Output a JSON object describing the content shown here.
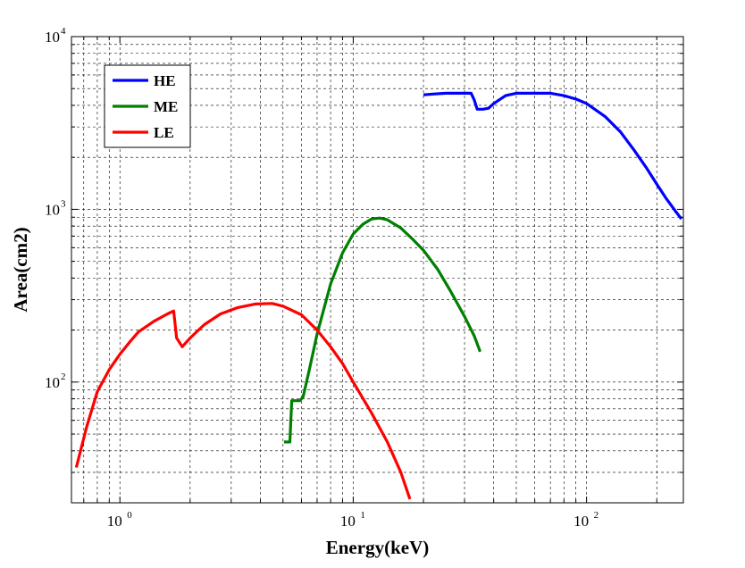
{
  "chart_data": {
    "type": "line",
    "xlabel": "Energy(keV)",
    "ylabel": "Area(cm2)",
    "x_scale": "log",
    "y_scale": "log",
    "xlim": [
      0.62,
      260
    ],
    "ylim": [
      20,
      10000
    ],
    "grid": true,
    "legend_position": "top-left",
    "x_ticks": [
      {
        "base": "10",
        "exp": "0",
        "value": 1
      },
      {
        "base": "10",
        "exp": "1",
        "value": 10
      },
      {
        "base": "10",
        "exp": "2",
        "value": 100
      }
    ],
    "y_ticks": [
      {
        "base": "10",
        "exp": "2",
        "value": 100
      },
      {
        "base": "10",
        "exp": "3",
        "value": 1000
      },
      {
        "base": "10",
        "exp": "4",
        "value": 10000
      }
    ],
    "series": [
      {
        "name": "HE",
        "color": "#0000ff",
        "points": [
          [
            20,
            4600
          ],
          [
            22,
            4650
          ],
          [
            25,
            4700
          ],
          [
            30,
            4700
          ],
          [
            32,
            4700
          ],
          [
            33,
            4300
          ],
          [
            34,
            3800
          ],
          [
            36,
            3800
          ],
          [
            38,
            3850
          ],
          [
            40,
            4100
          ],
          [
            45,
            4550
          ],
          [
            50,
            4700
          ],
          [
            60,
            4700
          ],
          [
            70,
            4700
          ],
          [
            80,
            4550
          ],
          [
            90,
            4350
          ],
          [
            100,
            4100
          ],
          [
            120,
            3450
          ],
          [
            140,
            2800
          ],
          [
            160,
            2200
          ],
          [
            180,
            1750
          ],
          [
            200,
            1400
          ],
          [
            220,
            1150
          ],
          [
            240,
            980
          ],
          [
            255,
            880
          ]
        ]
      },
      {
        "name": "ME",
        "color": "#007f00",
        "points": [
          [
            5.05,
            45
          ],
          [
            5.35,
            45
          ],
          [
            5.45,
            78
          ],
          [
            5.9,
            78
          ],
          [
            6.1,
            82
          ],
          [
            6.5,
            120
          ],
          [
            7,
            190
          ],
          [
            8,
            370
          ],
          [
            9,
            560
          ],
          [
            10,
            720
          ],
          [
            11,
            820
          ],
          [
            12,
            880
          ],
          [
            13,
            890
          ],
          [
            14,
            870
          ],
          [
            16,
            780
          ],
          [
            18,
            670
          ],
          [
            20,
            580
          ],
          [
            23,
            450
          ],
          [
            26,
            340
          ],
          [
            30,
            240
          ],
          [
            33,
            185
          ],
          [
            35,
            150
          ]
        ]
      },
      {
        "name": "LE",
        "color": "#ff0000",
        "points": [
          [
            0.65,
            32
          ],
          [
            0.72,
            55
          ],
          [
            0.8,
            88
          ],
          [
            0.9,
            118
          ],
          [
            1,
            145
          ],
          [
            1.1,
            170
          ],
          [
            1.2,
            195
          ],
          [
            1.4,
            225
          ],
          [
            1.6,
            248
          ],
          [
            1.7,
            258
          ],
          [
            1.75,
            180
          ],
          [
            1.85,
            160
          ],
          [
            2,
            180
          ],
          [
            2.3,
            215
          ],
          [
            2.7,
            248
          ],
          [
            3.2,
            270
          ],
          [
            3.8,
            283
          ],
          [
            4.5,
            285
          ],
          [
            5,
            275
          ],
          [
            6,
            245
          ],
          [
            7,
            200
          ],
          [
            8,
            160
          ],
          [
            9,
            128
          ],
          [
            10,
            100
          ],
          [
            12,
            66
          ],
          [
            14,
            45
          ],
          [
            16,
            30
          ],
          [
            17.5,
            21
          ]
        ]
      }
    ]
  }
}
